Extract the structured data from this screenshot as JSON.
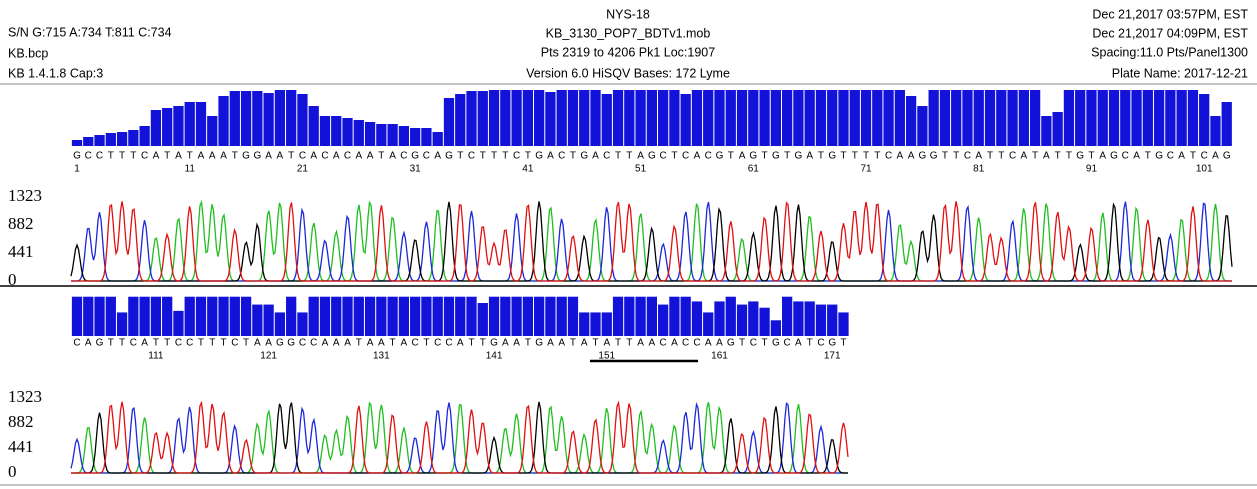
{
  "header": {
    "left": [
      "S/N G:715 A:734 T:811 C:734",
      "KB.bcp",
      "KB 1.4.1.8    Cap:3"
    ],
    "center": [
      "NYS-18",
      "KB_3130_POP7_BDTv1.mob",
      "Pts 2319 to 4206 Pk1 Loc:1907",
      "Version 6.0    HiSQV Bases: 172    Lyme"
    ],
    "right": [
      "Dec 21,2017 03:57PM, EST",
      "Dec 21,2017 04:09PM, EST",
      "Spacing:11.0  Pts/Panel1300",
      "Plate Name: 2017-12-21"
    ]
  },
  "yticks": [
    0,
    441,
    882,
    1323
  ],
  "panels": [
    {
      "start": 1,
      "sequence": [
        "G",
        "C",
        "C",
        "T",
        "T",
        "T",
        "C",
        "A",
        "T",
        "A",
        "T",
        "A",
        "A",
        "A",
        "T",
        "G",
        "G",
        "A",
        "A",
        "T",
        "C",
        "A",
        "C",
        "A",
        "C",
        "A",
        "A",
        "T",
        "A",
        "C",
        "G",
        "C",
        "A",
        "G",
        "T",
        "C",
        "T",
        "T",
        "T",
        "C",
        "T",
        "G",
        "A",
        "C",
        "T",
        "G",
        "A",
        "C",
        "T",
        "T",
        "A",
        "G",
        "C",
        "T",
        "C",
        "A",
        "C",
        "G",
        "T",
        "A",
        "G",
        "T",
        "G",
        "T",
        "G",
        "A",
        "T",
        "G",
        "T",
        "T",
        "T",
        "T",
        "C",
        "A",
        "A",
        "G",
        "G",
        "T",
        "T",
        "C",
        "A",
        "T",
        "T",
        "C",
        "A",
        "T",
        "A",
        "T",
        "T",
        "G",
        "T",
        "A",
        "G",
        "C",
        "A",
        "T",
        "G",
        "C",
        "A",
        "T",
        "C",
        "A",
        "G"
      ],
      "positions": [
        1,
        11,
        21,
        31,
        41,
        51,
        61,
        71,
        81,
        91,
        101
      ],
      "quality": [
        6,
        9,
        11,
        13,
        14,
        16,
        20,
        36,
        38,
        40,
        44,
        44,
        30,
        50,
        55,
        55,
        55,
        53,
        56,
        56,
        52,
        40,
        30,
        30,
        28,
        26,
        24,
        22,
        22,
        20,
        18,
        18,
        14,
        48,
        52,
        55,
        55,
        56,
        56,
        56,
        56,
        56,
        54,
        56,
        56,
        56,
        56,
        52,
        56,
        56,
        56,
        56,
        56,
        56,
        52,
        56,
        56,
        56,
        56,
        56,
        56,
        56,
        56,
        56,
        56,
        56,
        56,
        56,
        56,
        56,
        56,
        56,
        56,
        56,
        50,
        40,
        56,
        56,
        56,
        56,
        56,
        56,
        56,
        56,
        56,
        56,
        30,
        34,
        56,
        56,
        56,
        56,
        56,
        56,
        56,
        56,
        56,
        56,
        56,
        56,
        52,
        30,
        44
      ]
    },
    {
      "start": 104,
      "sequence": [
        "C",
        "A",
        "G",
        "T",
        "T",
        "C",
        "A",
        "T",
        "T",
        "C",
        "C",
        "T",
        "T",
        "T",
        "C",
        "T",
        "A",
        "A",
        "G",
        "G",
        "C",
        "C",
        "A",
        "A",
        "A",
        "T",
        "A",
        "A",
        "T",
        "A",
        "C",
        "T",
        "C",
        "C",
        "A",
        "T",
        "T",
        "G",
        "A",
        "A",
        "T",
        "G",
        "A",
        "A",
        "T",
        "A",
        "T",
        "A",
        "T",
        "T",
        "A",
        "A",
        "C",
        "A",
        "C",
        "C",
        "A",
        "A",
        "G",
        "T",
        "C",
        "T",
        "G",
        "C",
        "A",
        "T",
        "C",
        "G",
        "T"
      ],
      "positions": [
        111,
        121,
        131,
        141,
        151,
        161,
        171
      ],
      "quality": [
        50,
        50,
        50,
        50,
        30,
        50,
        50,
        50,
        50,
        32,
        50,
        50,
        50,
        50,
        50,
        50,
        40,
        40,
        30,
        50,
        30,
        50,
        50,
        50,
        50,
        50,
        50,
        50,
        50,
        50,
        50,
        50,
        50,
        50,
        50,
        50,
        42,
        50,
        50,
        50,
        50,
        50,
        50,
        50,
        50,
        30,
        30,
        30,
        50,
        50,
        50,
        50,
        40,
        50,
        50,
        44,
        30,
        44,
        50,
        40,
        44,
        36,
        20,
        50,
        44,
        44,
        40,
        40,
        30
      ]
    }
  ]
}
